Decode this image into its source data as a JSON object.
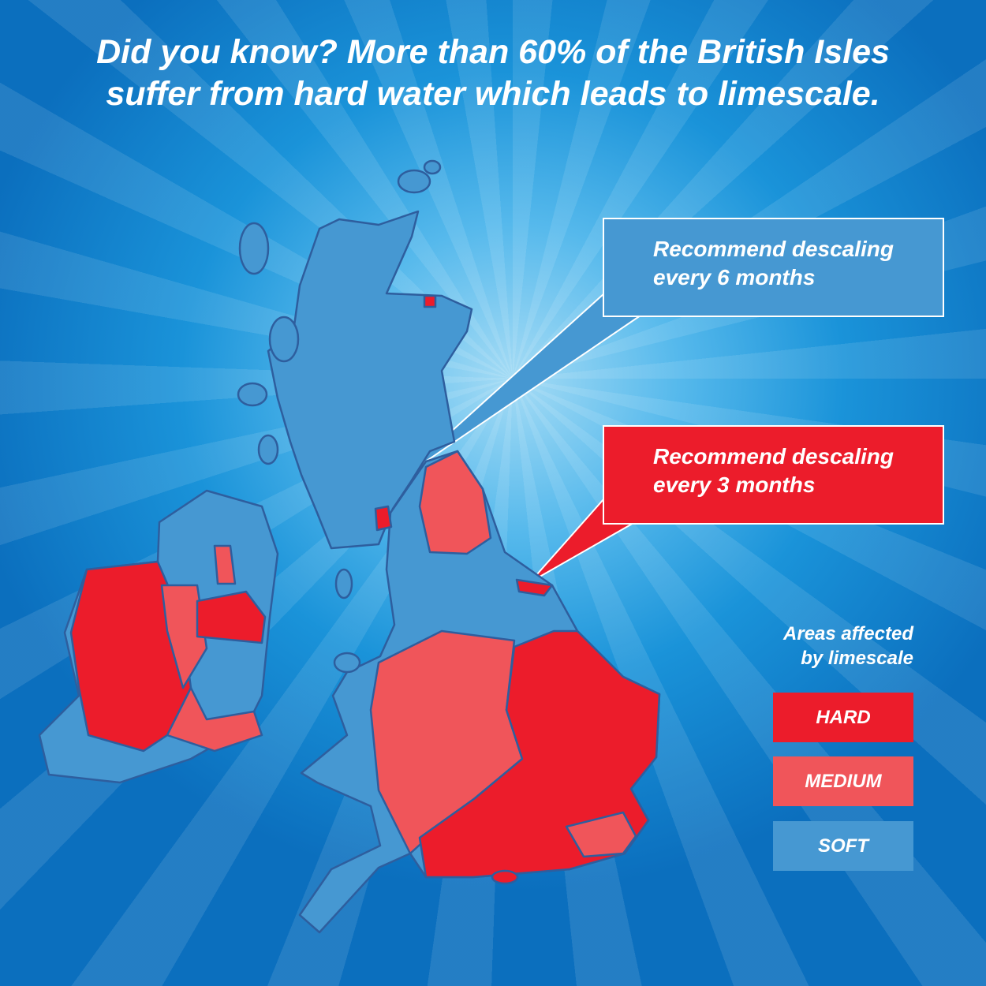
{
  "headline": {
    "line1": "Did you know?  More than 60% of the British Isles",
    "line2": "suffer from hard water which leads to limescale."
  },
  "callouts": [
    {
      "line1": "Recommend descaling",
      "line2": "every 6 months",
      "level": "soft"
    },
    {
      "line1": "Recommend descaling",
      "line2": "every 3 months",
      "level": "hard"
    }
  ],
  "legend": {
    "title_line1": "Areas affected",
    "title_line2": "by limescale",
    "items": [
      {
        "label": "HARD",
        "color": "#ec1c2b"
      },
      {
        "label": "MEDIUM",
        "color": "#f0555a"
      },
      {
        "label": "SOFT",
        "color": "#4698d2"
      }
    ]
  },
  "colors": {
    "hard": "#ec1c2b",
    "medium": "#f0555a",
    "soft": "#4698d2",
    "outline": "#2e5e9e"
  }
}
